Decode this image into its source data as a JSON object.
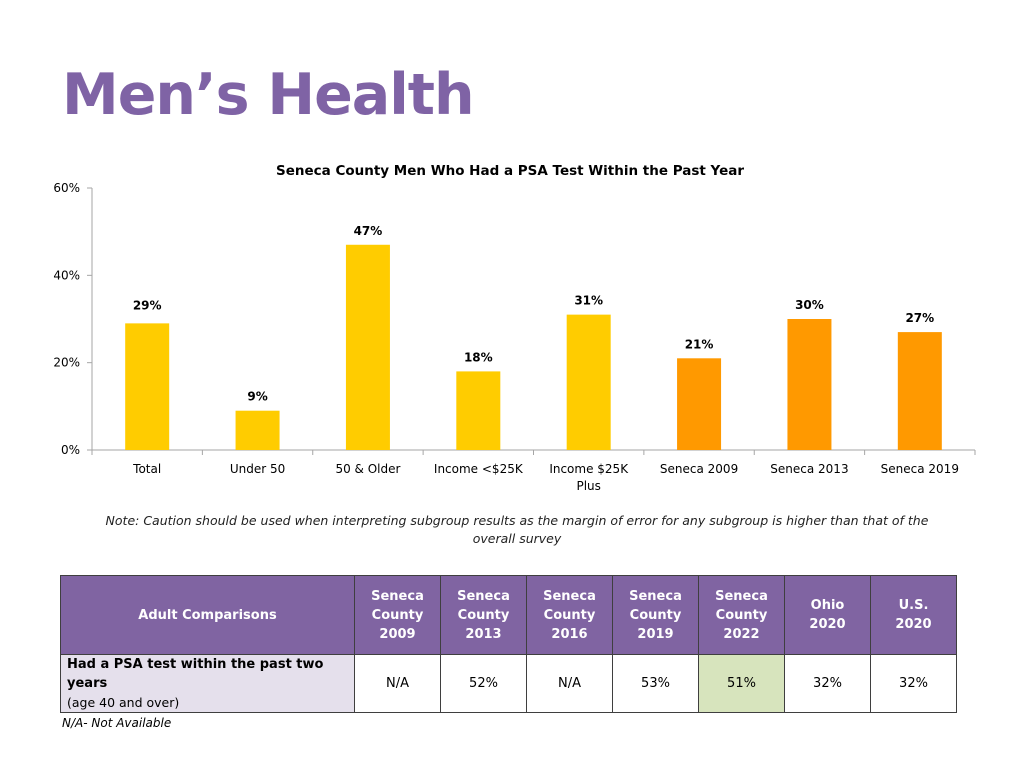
{
  "page": {
    "title": "Men’s Health"
  },
  "chart_data": {
    "type": "bar",
    "title": "Seneca County Men Who Had a PSA Test Within the Past Year",
    "categories": [
      "Total",
      "Under 50",
      "50 & Older",
      "Income <$25K",
      "Income $25K Plus",
      "Seneca 2009",
      "Seneca 2013",
      "Seneca 2019"
    ],
    "category_lines": [
      [
        "Total"
      ],
      [
        "Under 50"
      ],
      [
        "50 & Older"
      ],
      [
        "Income <$25K"
      ],
      [
        "Income $25K",
        "Plus"
      ],
      [
        "Seneca 2009"
      ],
      [
        "Seneca 2013"
      ],
      [
        "Seneca 2019"
      ]
    ],
    "values": [
      29,
      9,
      47,
      18,
      31,
      21,
      30,
      27
    ],
    "data_labels": [
      "29%",
      "9%",
      "47%",
      "18%",
      "31%",
      "21%",
      "30%",
      "27%"
    ],
    "bar_colors": [
      "#ffcc00",
      "#ffcc00",
      "#ffcc00",
      "#ffcc00",
      "#ffcc00",
      "#ff9900",
      "#ff9900",
      "#ff9900"
    ],
    "ylim": [
      0,
      60
    ],
    "yticks": [
      0,
      20,
      40,
      60
    ],
    "ytick_labels": [
      "0%",
      "20%",
      "40%",
      "60%"
    ],
    "grid": false,
    "legend": "none"
  },
  "note": "Note: Caution should be used when interpreting subgroup results as the margin of error for any subgroup is higher than that of the overall survey",
  "table": {
    "header_label": "Adult Comparisons",
    "columns": [
      [
        "Seneca",
        "County",
        "2009"
      ],
      [
        "Seneca",
        "County",
        "2013"
      ],
      [
        "Seneca",
        "County",
        "2016"
      ],
      [
        "Seneca",
        "County",
        "2019"
      ],
      [
        "Seneca",
        "County",
        "2022"
      ],
      [
        "Ohio",
        "2020"
      ],
      [
        "U.S.",
        "2020"
      ]
    ],
    "rows": [
      {
        "label": "Had a PSA test within the past two years",
        "sublabel": "(age 40 and over)",
        "values": [
          "N/A",
          "52%",
          "N/A",
          "53%",
          "51%",
          "32%",
          "32%"
        ],
        "highlight_index": 4,
        "highlight_color": "#d7e4bd"
      }
    ]
  },
  "footnote": "N/A- Not Available",
  "colors": {
    "title": "#7f63a5",
    "table_header": "#8064a2",
    "row_label_bg": "#e5e0ec"
  }
}
